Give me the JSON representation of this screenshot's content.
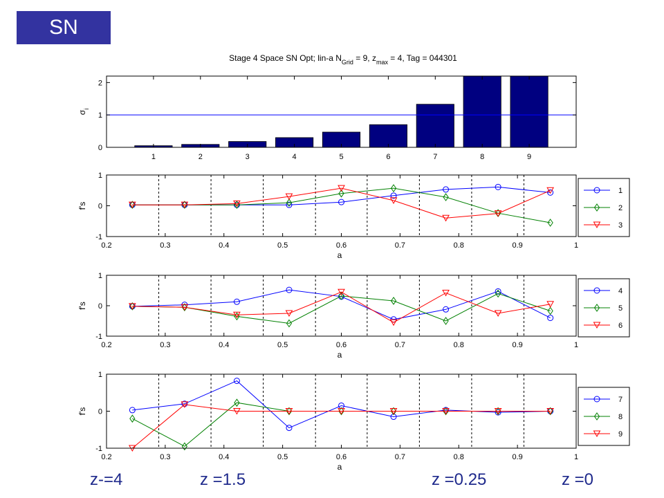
{
  "slide": {
    "badge": "SN",
    "footer_labels": [
      "z-=4",
      "z =1.5",
      "z =0.25",
      "z =0"
    ]
  },
  "figure": {
    "title_parts": [
      {
        "t": "Stage 4 Space SN Opt; lin-a N",
        "s": "normal"
      },
      {
        "t": "Grid",
        "s": "sub"
      },
      {
        "t": " = 9, z",
        "s": "normal"
      },
      {
        "t": "max",
        "s": "sub"
      },
      {
        "t": " = 4, Tag = 044301",
        "s": "normal"
      }
    ]
  },
  "colors": {
    "blue": "#0000ff",
    "green": "#008000",
    "red": "#ff0000",
    "bar": "#000080",
    "frame": "#000000"
  },
  "chart_data": [
    {
      "type": "bar",
      "categories": [
        "1",
        "2",
        "3",
        "4",
        "5",
        "6",
        "7",
        "8",
        "9"
      ],
      "values": [
        0.05,
        0.09,
        0.18,
        0.3,
        0.47,
        0.7,
        1.33,
        2.2,
        2.2
      ],
      "ylabel_base": "σ",
      "ylabel_sub": "i",
      "xlim": [
        0,
        10
      ],
      "ylim": [
        0,
        2.2
      ],
      "yticks": [
        0,
        1,
        2
      ],
      "xticks": [
        1,
        2,
        3,
        4,
        5,
        6,
        7,
        8,
        9
      ],
      "hline": 1
    },
    {
      "type": "line",
      "xlabel": "a",
      "ylabel": "f's",
      "xlim": [
        0.2,
        1
      ],
      "ylim": [
        -1,
        1
      ],
      "xticks": [
        0.2,
        0.3,
        0.4,
        0.5,
        0.6,
        0.7,
        0.8,
        0.9,
        1
      ],
      "yticks": [
        -1,
        0,
        1
      ],
      "vlines": [
        0.289,
        0.378,
        0.467,
        0.556,
        0.644,
        0.733,
        0.822,
        0.911
      ],
      "x": [
        0.244,
        0.333,
        0.422,
        0.511,
        0.6,
        0.689,
        0.778,
        0.867,
        0.956
      ],
      "legend_position": "right",
      "series": [
        {
          "name": "1",
          "marker": "circle",
          "color": "blue",
          "values": [
            0.03,
            0.03,
            0.03,
            0.03,
            0.12,
            0.33,
            0.53,
            0.61,
            0.43
          ]
        },
        {
          "name": "2",
          "marker": "diamond",
          "color": "green",
          "values": [
            0.03,
            0.03,
            0.03,
            0.1,
            0.4,
            0.57,
            0.28,
            -0.24,
            -0.55
          ]
        },
        {
          "name": "3",
          "marker": "triangle",
          "color": "red",
          "values": [
            0.03,
            0.03,
            0.07,
            0.3,
            0.57,
            0.17,
            -0.4,
            -0.25,
            0.5
          ]
        }
      ]
    },
    {
      "type": "line",
      "xlabel": "a",
      "ylabel": "f's",
      "xlim": [
        0.2,
        1
      ],
      "ylim": [
        -1,
        1
      ],
      "xticks": [
        0.2,
        0.3,
        0.4,
        0.5,
        0.6,
        0.7,
        0.8,
        0.9,
        1
      ],
      "yticks": [
        -1,
        0,
        1
      ],
      "vlines": [
        0.289,
        0.378,
        0.467,
        0.556,
        0.644,
        0.733,
        0.822,
        0.911
      ],
      "x": [
        0.244,
        0.333,
        0.422,
        0.511,
        0.6,
        0.689,
        0.778,
        0.867,
        0.956
      ],
      "legend_position": "right",
      "series": [
        {
          "name": "4",
          "marker": "circle",
          "color": "blue",
          "values": [
            -0.02,
            0.03,
            0.13,
            0.52,
            0.3,
            -0.45,
            -0.12,
            0.47,
            -0.4
          ]
        },
        {
          "name": "5",
          "marker": "diamond",
          "color": "green",
          "values": [
            -0.02,
            -0.05,
            -0.35,
            -0.58,
            0.32,
            0.16,
            -0.5,
            0.4,
            -0.17
          ]
        },
        {
          "name": "6",
          "marker": "triangle",
          "color": "red",
          "values": [
            -0.02,
            -0.05,
            -0.3,
            -0.25,
            0.45,
            -0.55,
            0.42,
            -0.25,
            0.05
          ]
        }
      ]
    },
    {
      "type": "line",
      "xlabel": "a",
      "ylabel": "f's",
      "xlim": [
        0.2,
        1
      ],
      "ylim": [
        -1,
        1
      ],
      "xticks": [
        0.2,
        0.3,
        0.4,
        0.5,
        0.6,
        0.7,
        0.8,
        0.9,
        1
      ],
      "yticks": [
        -1,
        0,
        1
      ],
      "vlines": [
        0.289,
        0.378,
        0.467,
        0.556,
        0.644,
        0.733,
        0.822,
        0.911
      ],
      "x": [
        0.244,
        0.333,
        0.422,
        0.511,
        0.6,
        0.689,
        0.778,
        0.867,
        0.956
      ],
      "legend_position": "right",
      "series": [
        {
          "name": "7",
          "marker": "circle",
          "color": "blue",
          "values": [
            0.03,
            0.2,
            0.82,
            -0.45,
            0.15,
            -0.15,
            0.03,
            -0.03,
            0.0
          ]
        },
        {
          "name": "8",
          "marker": "diamond",
          "color": "green",
          "values": [
            -0.2,
            -0.95,
            0.23,
            0.0,
            0.0,
            0.0,
            0.0,
            0.0,
            0.0
          ]
        },
        {
          "name": "9",
          "marker": "triangle",
          "color": "red",
          "values": [
            -1.0,
            0.18,
            0.0,
            0.0,
            0.0,
            0.0,
            0.0,
            0.0,
            0.0
          ]
        }
      ]
    }
  ]
}
